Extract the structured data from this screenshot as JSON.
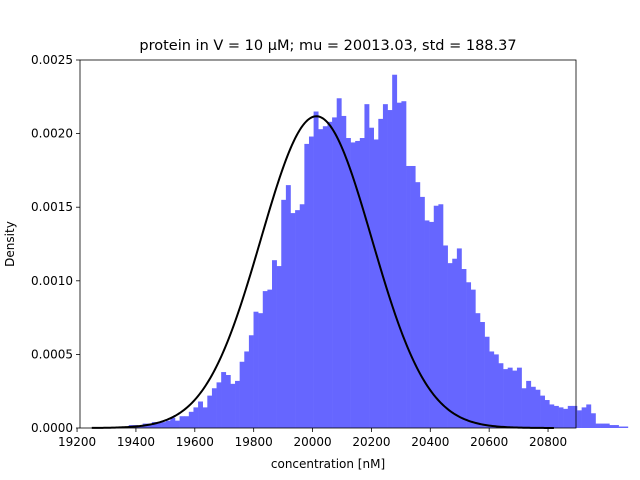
{
  "chart_data": {
    "type": "histogram",
    "title": "protein in V = 10 μM; mu = 20013.03,  std = 188.37",
    "xlabel": "concentration [nM]",
    "ylabel": "Density",
    "xlim": [
      19210,
      20895
    ],
    "ylim": [
      0,
      0.0025
    ],
    "x_ticks": [
      19200,
      19400,
      19600,
      19800,
      20000,
      20200,
      20400,
      20600,
      20800
    ],
    "x_tick_labels": [
      "19200",
      "19400",
      "19600",
      "19800",
      "20000",
      "20200",
      "20400",
      "20600",
      "20800"
    ],
    "y_ticks": [
      0,
      0.0005,
      0.001,
      0.0015,
      0.002,
      0.0025
    ],
    "y_tick_labels": [
      "0.0000",
      "0.0005",
      "0.0010",
      "0.0015",
      "0.0020",
      "0.0025"
    ],
    "bar_color": "#6666ff",
    "curve_color": "#000000",
    "fit": {
      "mu": 20013.03,
      "std": 188.37,
      "x_range": [
        19250,
        20820
      ]
    },
    "bin_start": 19250,
    "bin_width": 15.7,
    "densities": [
      0,
      0,
      0,
      0,
      0,
      0,
      1e-05,
      0,
      2e-05,
      2e-05,
      1e-05,
      3e-05,
      3e-05,
      4e-05,
      4e-05,
      4e-05,
      5e-05,
      7e-05,
      5e-05,
      8e-05,
      8e-05,
      0.00011,
      0.00014,
      0.00018,
      0.00014,
      0.00022,
      0.00027,
      0.00031,
      0.00038,
      0.00036,
      0.0003,
      0.00032,
      0.00045,
      0.00052,
      0.00063,
      0.00079,
      0.00078,
      0.00093,
      0.00094,
      0.00114,
      0.0011,
      0.00155,
      0.00165,
      0.00146,
      0.00148,
      0.00152,
      0.00193,
      0.00198,
      0.00215,
      0.00203,
      0.00205,
      0.00208,
      0.00211,
      0.00224,
      0.00212,
      0.00197,
      0.00194,
      0.00195,
      0.00197,
      0.0022,
      0.00204,
      0.00196,
      0.0021,
      0.0022,
      0.00216,
      0.0024,
      0.00221,
      0.00222,
      0.00178,
      0.00178,
      0.00167,
      0.00157,
      0.00141,
      0.0014,
      0.00151,
      0.00152,
      0.00124,
      0.00112,
      0.00115,
      0.00122,
      0.00108,
      0.00099,
      0.00094,
      0.00078,
      0.00072,
      0.00062,
      0.00052,
      0.0005,
      0.00044,
      0.0004,
      0.00041,
      0.00039,
      0.00041,
      0.00027,
      0.00032,
      0.00028,
      0.00026,
      0.00022,
      0.00019,
      0.00016,
      0.00015,
      0.00014,
      0.00013,
      0.00015,
      0.00015,
      0.00012,
      0.00014,
      0.00016,
      0.0001,
      3e-05,
      3e-05,
      3e-05,
      2e-05,
      2e-05,
      1e-05,
      1e-05,
      0,
      0,
      0,
      1e-05,
      0,
      0,
      0,
      1e-05,
      1e-05,
      1e-05,
      1e-05,
      1e-05,
      2e-05,
      1e-05,
      3e-05,
      2e-05,
      3e-05,
      1e-05,
      1e-05,
      1e-05,
      1e-05,
      1e-05,
      1e-05,
      1e-05,
      2e-05,
      2e-05,
      1e-05,
      0,
      1e-05,
      1e-05,
      1e-05,
      1e-05
    ]
  }
}
